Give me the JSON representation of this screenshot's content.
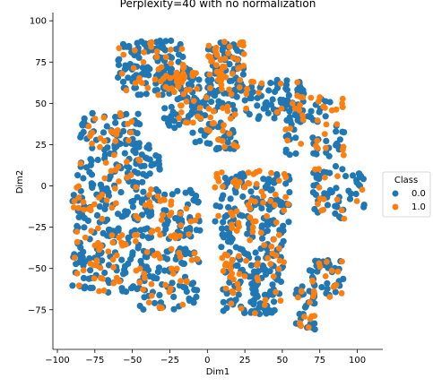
{
  "chart_data": {
    "type": "scatter",
    "title": "Perplexity=40 with no normalization",
    "xlabel": "Dim1",
    "ylabel": "Dim2",
    "xlim": [
      -103,
      117
    ],
    "ylim": [
      -99,
      105
    ],
    "xticks": [
      -100,
      -75,
      -50,
      -25,
      0,
      25,
      50,
      75,
      100
    ],
    "yticks": [
      -75,
      -50,
      -25,
      0,
      25,
      50,
      75,
      100
    ],
    "grid": false,
    "legend": {
      "title": "Class",
      "placement": "center-right"
    },
    "colors": {
      "0.0": "#1f77b4",
      "1.0": "#ff7f0e"
    },
    "series": [
      {
        "name": "0.0",
        "clusters": [
          {
            "x": [
              -60,
              -15
            ],
            "y": [
              55,
              88
            ],
            "n": 120
          },
          {
            "x": [
              -30,
              -5
            ],
            "y": [
              35,
              72
            ],
            "n": 55
          },
          {
            "x": [
              0,
              25
            ],
            "y": [
              55,
              88
            ],
            "n": 70
          },
          {
            "x": [
              -10,
              20
            ],
            "y": [
              22,
              55
            ],
            "n": 55
          },
          {
            "x": [
              25,
              65
            ],
            "y": [
              40,
              65
            ],
            "n": 65
          },
          {
            "x": [
              52,
              92
            ],
            "y": [
              18,
              55
            ],
            "n": 55
          },
          {
            "x": [
              -85,
              -45
            ],
            "y": [
              10,
              45
            ],
            "n": 70
          },
          {
            "x": [
              -55,
              -30
            ],
            "y": [
              0,
              30
            ],
            "n": 35
          },
          {
            "x": [
              -90,
              -45
            ],
            "y": [
              -30,
              10
            ],
            "n": 85
          },
          {
            "x": [
              -45,
              -5
            ],
            "y": [
              -32,
              -2
            ],
            "n": 75
          },
          {
            "x": [
              5,
              55
            ],
            "y": [
              -22,
              10
            ],
            "n": 90
          },
          {
            "x": [
              8,
              52
            ],
            "y": [
              -52,
              -22
            ],
            "n": 85
          },
          {
            "x": [
              10,
              50
            ],
            "y": [
              -78,
              -52
            ],
            "n": 60
          },
          {
            "x": [
              70,
              105
            ],
            "y": [
              -20,
              12
            ],
            "n": 50
          },
          {
            "x": [
              -90,
              -45
            ],
            "y": [
              -65,
              -30
            ],
            "n": 75
          },
          {
            "x": [
              -45,
              -5
            ],
            "y": [
              -75,
              -38
            ],
            "n": 80
          },
          {
            "x": [
              28,
              45
            ],
            "y": [
              -77,
              -62
            ],
            "n": 20
          },
          {
            "x": [
              58,
              72
            ],
            "y": [
              -87,
              -60
            ],
            "n": 25
          },
          {
            "x": [
              68,
              92
            ],
            "y": [
              -68,
              -45
            ],
            "n": 35
          }
        ]
      },
      {
        "name": "1.0",
        "clusters": [
          {
            "x": [
              -60,
              -15
            ],
            "y": [
              55,
              88
            ],
            "n": 45
          },
          {
            "x": [
              -30,
              -5
            ],
            "y": [
              35,
              72
            ],
            "n": 20
          },
          {
            "x": [
              0,
              25
            ],
            "y": [
              55,
              88
            ],
            "n": 45
          },
          {
            "x": [
              -10,
              20
            ],
            "y": [
              22,
              55
            ],
            "n": 25
          },
          {
            "x": [
              25,
              65
            ],
            "y": [
              40,
              65
            ],
            "n": 15
          },
          {
            "x": [
              52,
              92
            ],
            "y": [
              18,
              55
            ],
            "n": 30
          },
          {
            "x": [
              -85,
              -45
            ],
            "y": [
              10,
              45
            ],
            "n": 30
          },
          {
            "x": [
              -90,
              -45
            ],
            "y": [
              -30,
              10
            ],
            "n": 35
          },
          {
            "x": [
              -45,
              -5
            ],
            "y": [
              -32,
              -2
            ],
            "n": 30
          },
          {
            "x": [
              5,
              55
            ],
            "y": [
              -22,
              10
            ],
            "n": 45
          },
          {
            "x": [
              8,
              52
            ],
            "y": [
              -52,
              -22
            ],
            "n": 35
          },
          {
            "x": [
              10,
              50
            ],
            "y": [
              -78,
              -52
            ],
            "n": 20
          },
          {
            "x": [
              70,
              105
            ],
            "y": [
              -20,
              12
            ],
            "n": 15
          },
          {
            "x": [
              -90,
              -45
            ],
            "y": [
              -65,
              -30
            ],
            "n": 35
          },
          {
            "x": [
              -45,
              -5
            ],
            "y": [
              -75,
              -38
            ],
            "n": 30
          },
          {
            "x": [
              58,
              72
            ],
            "y": [
              -87,
              -60
            ],
            "n": 12
          },
          {
            "x": [
              68,
              92
            ],
            "y": [
              -68,
              -45
            ],
            "n": 15
          }
        ]
      }
    ]
  }
}
